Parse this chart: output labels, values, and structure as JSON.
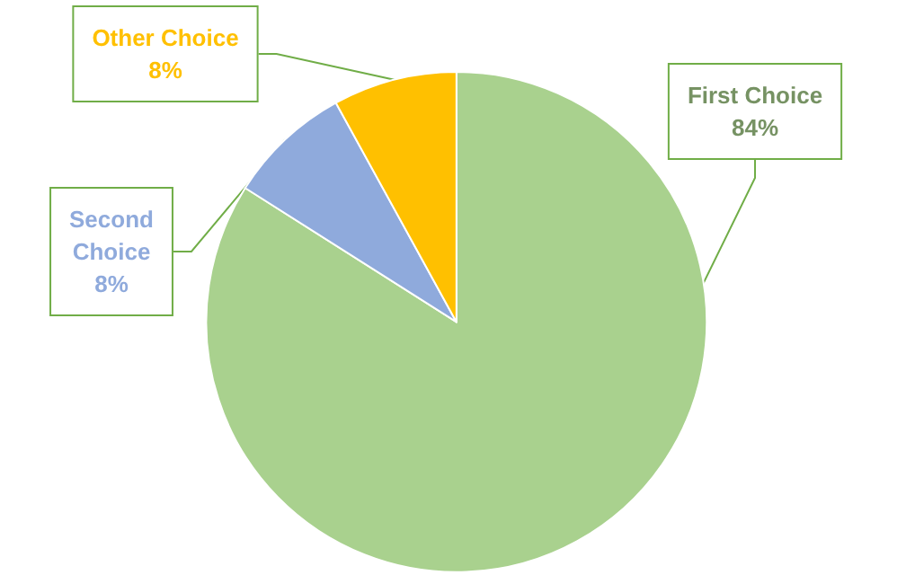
{
  "chart_data": {
    "type": "pie",
    "categories": [
      "First Choice",
      "Second Choice",
      "Other Choice"
    ],
    "values": [
      84,
      8,
      8
    ],
    "colors": [
      "#a9d18e",
      "#8faadc",
      "#ffc000"
    ],
    "value_labels": [
      "84%",
      "8%",
      "8%"
    ],
    "legend": false
  }
}
